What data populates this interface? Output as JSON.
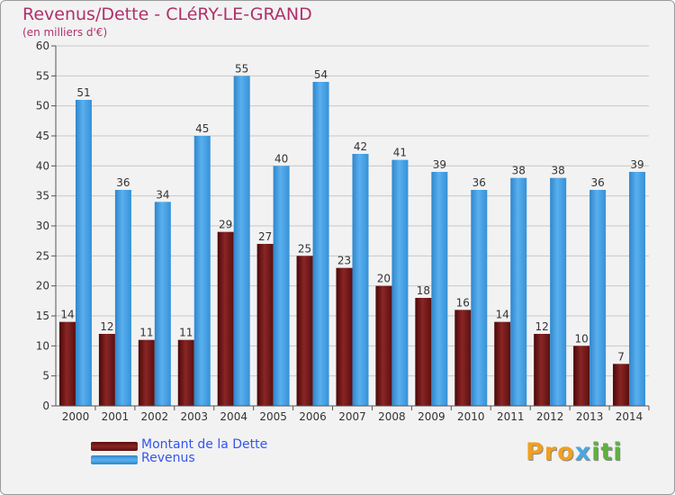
{
  "title": "Revenus/Dette - CLéRY-LE-GRAND",
  "subtitle": "(en milliers d'€)",
  "logo": {
    "parts": [
      "Pro",
      "x",
      "iti"
    ],
    "colors": [
      "#f0a020",
      "#4aa8e0",
      "#d03070",
      "#60b040"
    ]
  },
  "chart_data": {
    "type": "bar",
    "title": "Revenus/Dette - CLéRY-LE-GRAND",
    "ylabel": "(en milliers d'€)",
    "xlabel": "",
    "ylim": [
      0,
      60
    ],
    "yticks": [
      0,
      5,
      10,
      15,
      20,
      25,
      30,
      35,
      40,
      45,
      50,
      55,
      60
    ],
    "grid": true,
    "legend_position": "bottom-left",
    "categories": [
      "2000",
      "2001",
      "2002",
      "2003",
      "2004",
      "2005",
      "2006",
      "2007",
      "2008",
      "2009",
      "2010",
      "2011",
      "2012",
      "2013",
      "2014"
    ],
    "series": [
      {
        "name": "Montant de la Dette",
        "color": "#7a1a1a",
        "values": [
          14,
          12,
          11,
          11,
          29,
          27,
          25,
          23,
          20,
          18,
          16,
          14,
          12,
          10,
          7
        ]
      },
      {
        "name": "Revenus",
        "color": "#3d9be0",
        "values": [
          51,
          36,
          34,
          45,
          55,
          40,
          54,
          42,
          41,
          39,
          36,
          38,
          38,
          36,
          39
        ]
      }
    ]
  }
}
